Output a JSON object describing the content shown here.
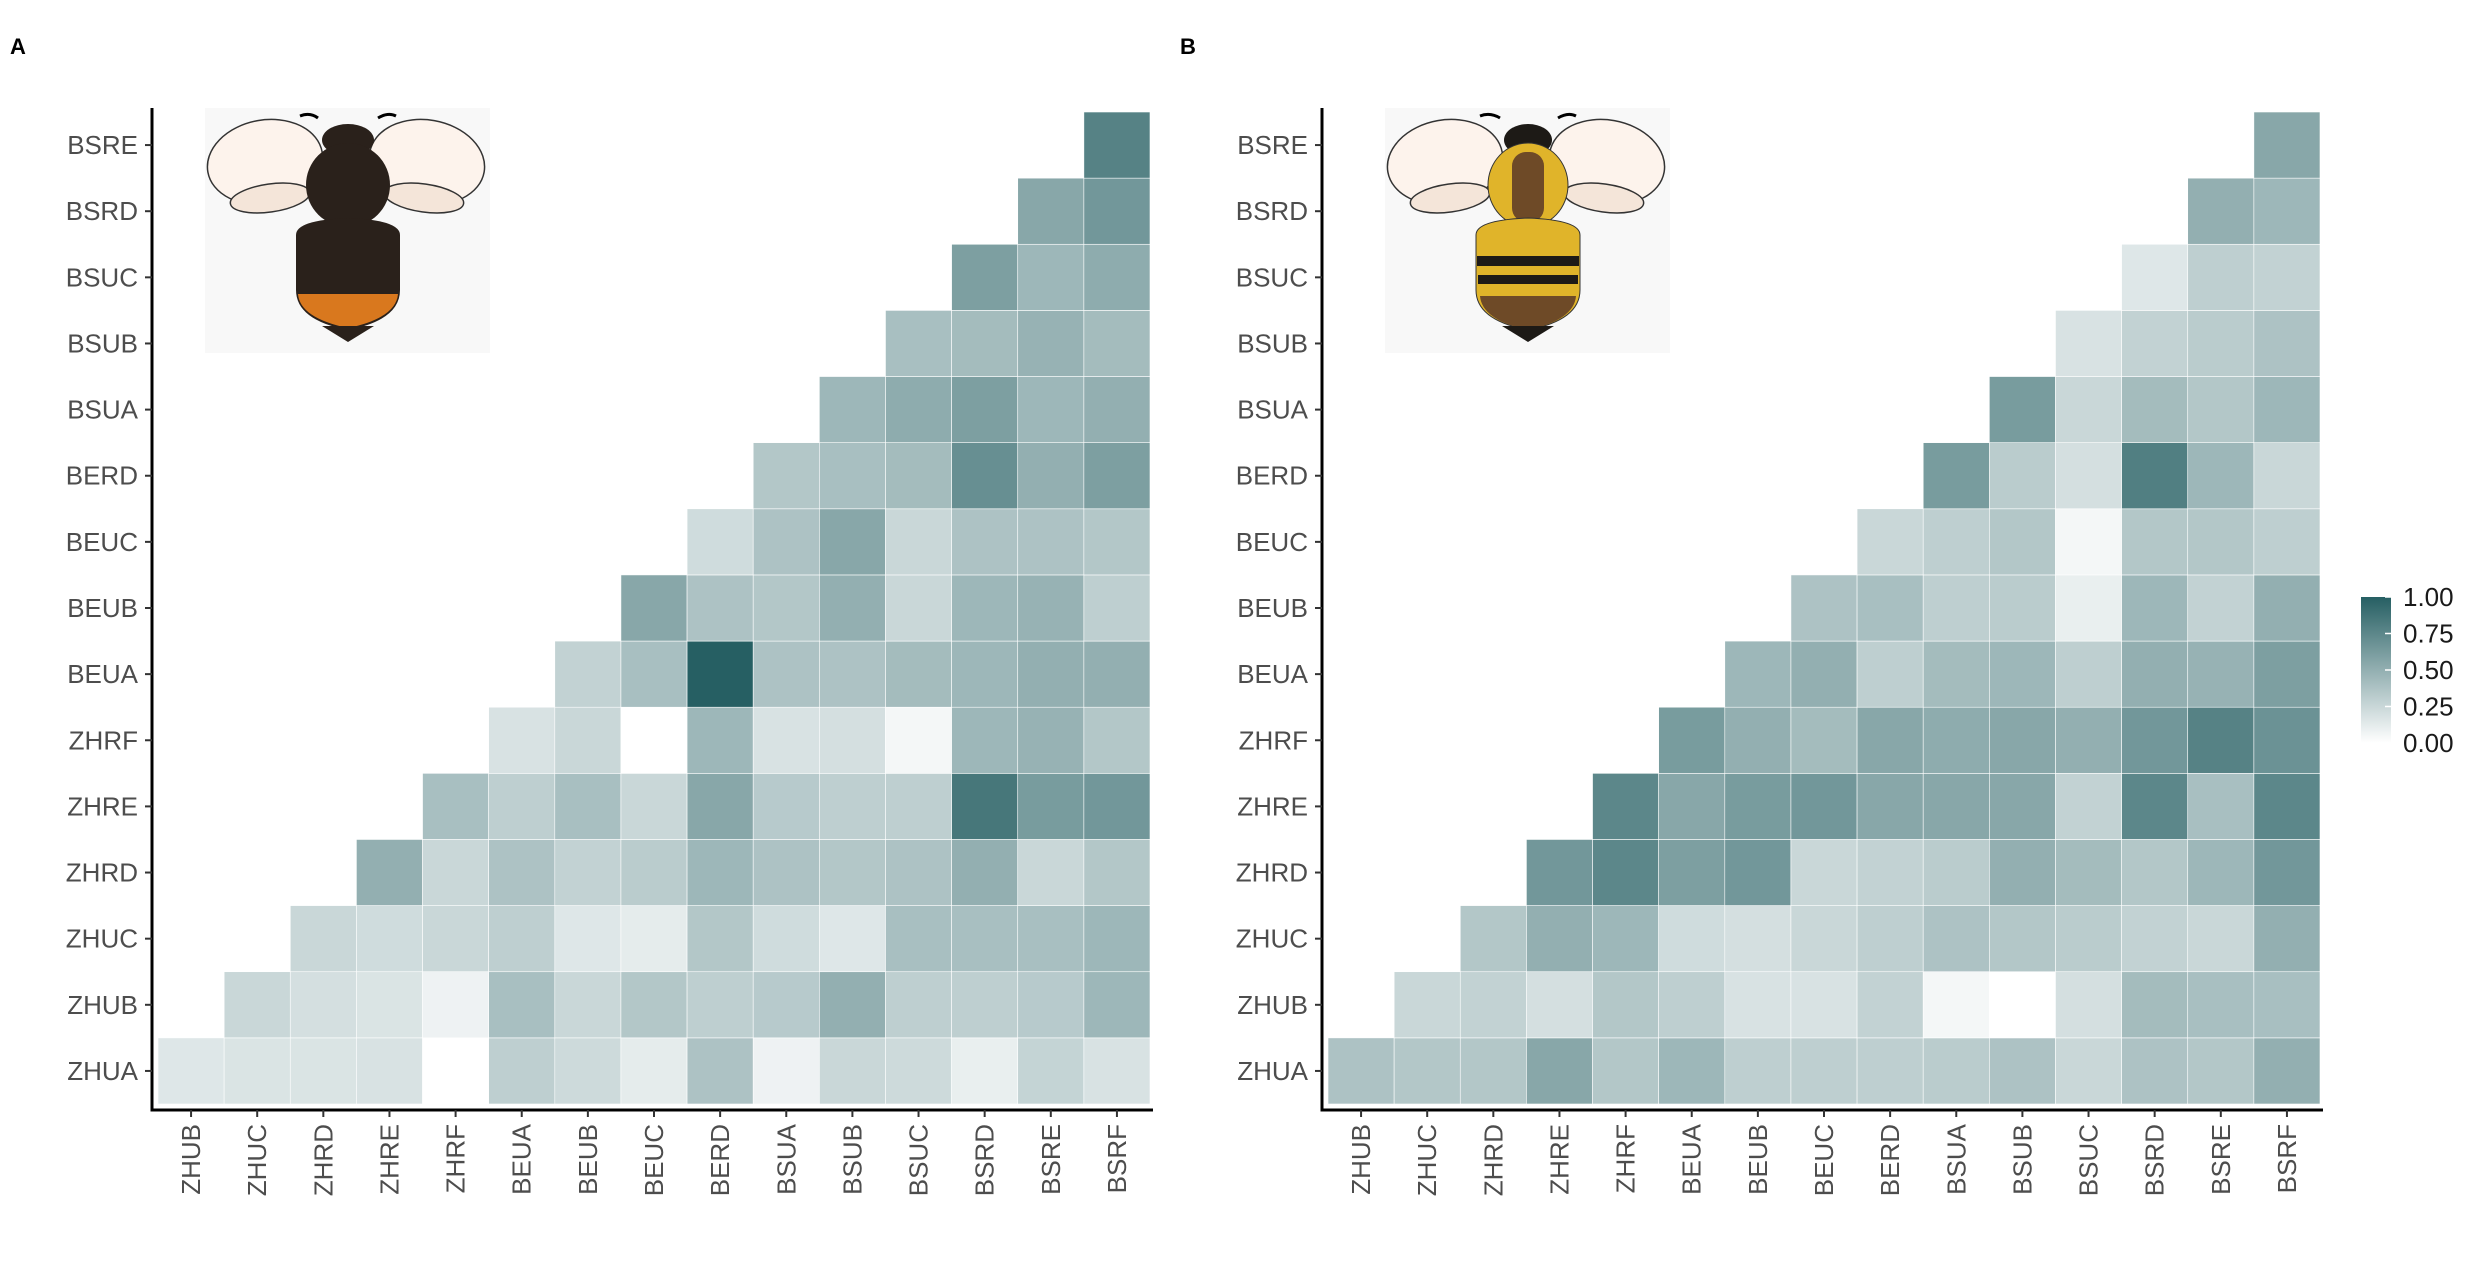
{
  "panels": [
    {
      "letter": "A"
    },
    {
      "letter": "B"
    }
  ],
  "colors": {
    "low": "#ffffff",
    "high": "#265f63",
    "axis": "#000000",
    "tick_text": "#4d4d4d",
    "dark_bee_body": "#2a211b",
    "dark_bee_band": "#d9781e",
    "yellow_bee_body": "#e0b42a",
    "yellow_bee_brown": "#6e4a27",
    "wing": "#fdf3ec"
  },
  "chart_data": [
    {
      "type": "heatmap",
      "panel": "A",
      "icon": "dark-bumblebee-icon",
      "x_categories": [
        "ZHUB",
        "ZHUC",
        "ZHRD",
        "ZHRE",
        "ZHRF",
        "BEUA",
        "BEUB",
        "BEUC",
        "BERD",
        "BSUA",
        "BSUB",
        "BSUC",
        "BSRD",
        "BSRE",
        "BSRF"
      ],
      "y_categories": [
        "ZHUA",
        "ZHUB",
        "ZHUC",
        "ZHRD",
        "ZHRE",
        "ZHRF",
        "BEUA",
        "BEUB",
        "BEUC",
        "BERD",
        "BSUA",
        "BSUB",
        "BSUC",
        "BSRD",
        "BSRE"
      ],
      "values": [
        [
          0.15,
          0.17,
          0.17,
          0.18,
          0.0,
          0.3,
          0.23,
          0.12,
          0.38,
          0.08,
          0.25,
          0.23,
          0.1,
          0.27,
          0.18
        ],
        [
          null,
          0.25,
          0.2,
          0.17,
          0.08,
          0.4,
          0.25,
          0.35,
          0.3,
          0.33,
          0.5,
          0.3,
          0.3,
          0.33,
          0.45
        ],
        [
          null,
          null,
          0.25,
          0.22,
          0.25,
          0.3,
          0.15,
          0.12,
          0.35,
          0.22,
          0.15,
          0.4,
          0.4,
          0.4,
          0.45
        ],
        [
          null,
          null,
          null,
          0.5,
          0.25,
          0.38,
          0.28,
          0.32,
          0.45,
          0.38,
          0.35,
          0.38,
          0.5,
          0.25,
          0.35
        ],
        [
          null,
          null,
          null,
          null,
          0.4,
          0.3,
          0.4,
          0.25,
          0.55,
          0.33,
          0.3,
          0.3,
          0.85,
          0.62,
          0.65
        ],
        [
          null,
          null,
          null,
          null,
          null,
          0.18,
          0.25,
          0.0,
          0.45,
          0.18,
          0.2,
          0.05,
          0.45,
          0.48,
          0.35
        ],
        [
          null,
          null,
          null,
          null,
          null,
          null,
          0.28,
          0.4,
          1.0,
          0.38,
          0.38,
          0.42,
          0.45,
          0.5,
          0.5
        ],
        [
          null,
          null,
          null,
          null,
          null,
          null,
          null,
          0.55,
          0.38,
          0.35,
          0.5,
          0.25,
          0.45,
          0.48,
          0.3
        ],
        [
          null,
          null,
          null,
          null,
          null,
          null,
          null,
          null,
          0.22,
          0.38,
          0.55,
          0.25,
          0.38,
          0.38,
          0.35
        ],
        [
          null,
          null,
          null,
          null,
          null,
          null,
          null,
          null,
          null,
          0.35,
          0.4,
          0.42,
          0.7,
          0.5,
          0.6
        ],
        [
          null,
          null,
          null,
          null,
          null,
          null,
          null,
          null,
          null,
          null,
          0.45,
          0.52,
          0.6,
          0.45,
          0.5
        ],
        [
          null,
          null,
          null,
          null,
          null,
          null,
          null,
          null,
          null,
          null,
          null,
          0.4,
          0.42,
          0.48,
          0.42
        ],
        [
          null,
          null,
          null,
          null,
          null,
          null,
          null,
          null,
          null,
          null,
          null,
          null,
          0.6,
          0.45,
          0.52
        ],
        [
          null,
          null,
          null,
          null,
          null,
          null,
          null,
          null,
          null,
          null,
          null,
          null,
          null,
          0.55,
          0.65
        ],
        [
          null,
          null,
          null,
          null,
          null,
          null,
          null,
          null,
          null,
          null,
          null,
          null,
          null,
          null,
          0.78
        ]
      ]
    },
    {
      "type": "heatmap",
      "panel": "B",
      "icon": "yellow-banded-bee-icon",
      "x_categories": [
        "ZHUB",
        "ZHUC",
        "ZHRD",
        "ZHRE",
        "ZHRF",
        "BEUA",
        "BEUB",
        "BEUC",
        "BERD",
        "BSUA",
        "BSUB",
        "BSUC",
        "BSRD",
        "BSRE",
        "BSRF"
      ],
      "y_categories": [
        "ZHUA",
        "ZHUB",
        "ZHUC",
        "ZHRD",
        "ZHRE",
        "ZHRF",
        "BEUA",
        "BEUB",
        "BEUC",
        "BERD",
        "BSUA",
        "BSUB",
        "BSUC",
        "BSRD",
        "BSRE"
      ],
      "values": [
        [
          0.38,
          0.35,
          0.35,
          0.55,
          0.35,
          0.45,
          0.3,
          0.3,
          0.3,
          0.32,
          0.38,
          0.25,
          0.38,
          0.35,
          0.5
        ],
        [
          null,
          0.25,
          0.28,
          0.2,
          0.35,
          0.3,
          0.18,
          0.18,
          0.28,
          0.05,
          0.0,
          0.2,
          0.42,
          0.4,
          0.4
        ],
        [
          null,
          null,
          0.35,
          0.5,
          0.45,
          0.22,
          0.2,
          0.25,
          0.3,
          0.38,
          0.35,
          0.32,
          0.28,
          0.25,
          0.5
        ],
        [
          null,
          null,
          null,
          0.65,
          0.75,
          0.6,
          0.65,
          0.25,
          0.28,
          0.32,
          0.5,
          0.42,
          0.35,
          0.45,
          0.65
        ],
        [
          null,
          null,
          null,
          null,
          0.75,
          0.55,
          0.62,
          0.65,
          0.55,
          0.55,
          0.55,
          0.28,
          0.75,
          0.4,
          0.75
        ],
        [
          null,
          null,
          null,
          null,
          null,
          0.62,
          0.5,
          0.42,
          0.55,
          0.52,
          0.55,
          0.5,
          0.65,
          0.78,
          0.68
        ],
        [
          null,
          null,
          null,
          null,
          null,
          null,
          0.45,
          0.5,
          0.3,
          0.42,
          0.45,
          0.3,
          0.5,
          0.48,
          0.6
        ],
        [
          null,
          null,
          null,
          null,
          null,
          null,
          null,
          0.38,
          0.4,
          0.3,
          0.32,
          0.1,
          0.45,
          0.28,
          0.5
        ],
        [
          null,
          null,
          null,
          null,
          null,
          null,
          null,
          null,
          0.25,
          0.3,
          0.35,
          0.05,
          0.35,
          0.35,
          0.3
        ],
        [
          null,
          null,
          null,
          null,
          null,
          null,
          null,
          null,
          null,
          0.62,
          0.32,
          0.2,
          0.8,
          0.45,
          0.25
        ],
        [
          null,
          null,
          null,
          null,
          null,
          null,
          null,
          null,
          null,
          null,
          0.62,
          0.25,
          0.42,
          0.35,
          0.45
        ],
        [
          null,
          null,
          null,
          null,
          null,
          null,
          null,
          null,
          null,
          null,
          null,
          0.18,
          0.28,
          0.32,
          0.38
        ],
        [
          null,
          null,
          null,
          null,
          null,
          null,
          null,
          null,
          null,
          null,
          null,
          null,
          0.15,
          0.3,
          0.28
        ],
        [
          null,
          null,
          null,
          null,
          null,
          null,
          null,
          null,
          null,
          null,
          null,
          null,
          null,
          0.5,
          0.45
        ],
        [
          null,
          null,
          null,
          null,
          null,
          null,
          null,
          null,
          null,
          null,
          null,
          null,
          null,
          null,
          0.55
        ]
      ]
    }
  ],
  "legend": {
    "ticks": [
      "1.00",
      "0.75",
      "0.50",
      "0.25",
      "0.00"
    ],
    "range": [
      0,
      1
    ]
  }
}
